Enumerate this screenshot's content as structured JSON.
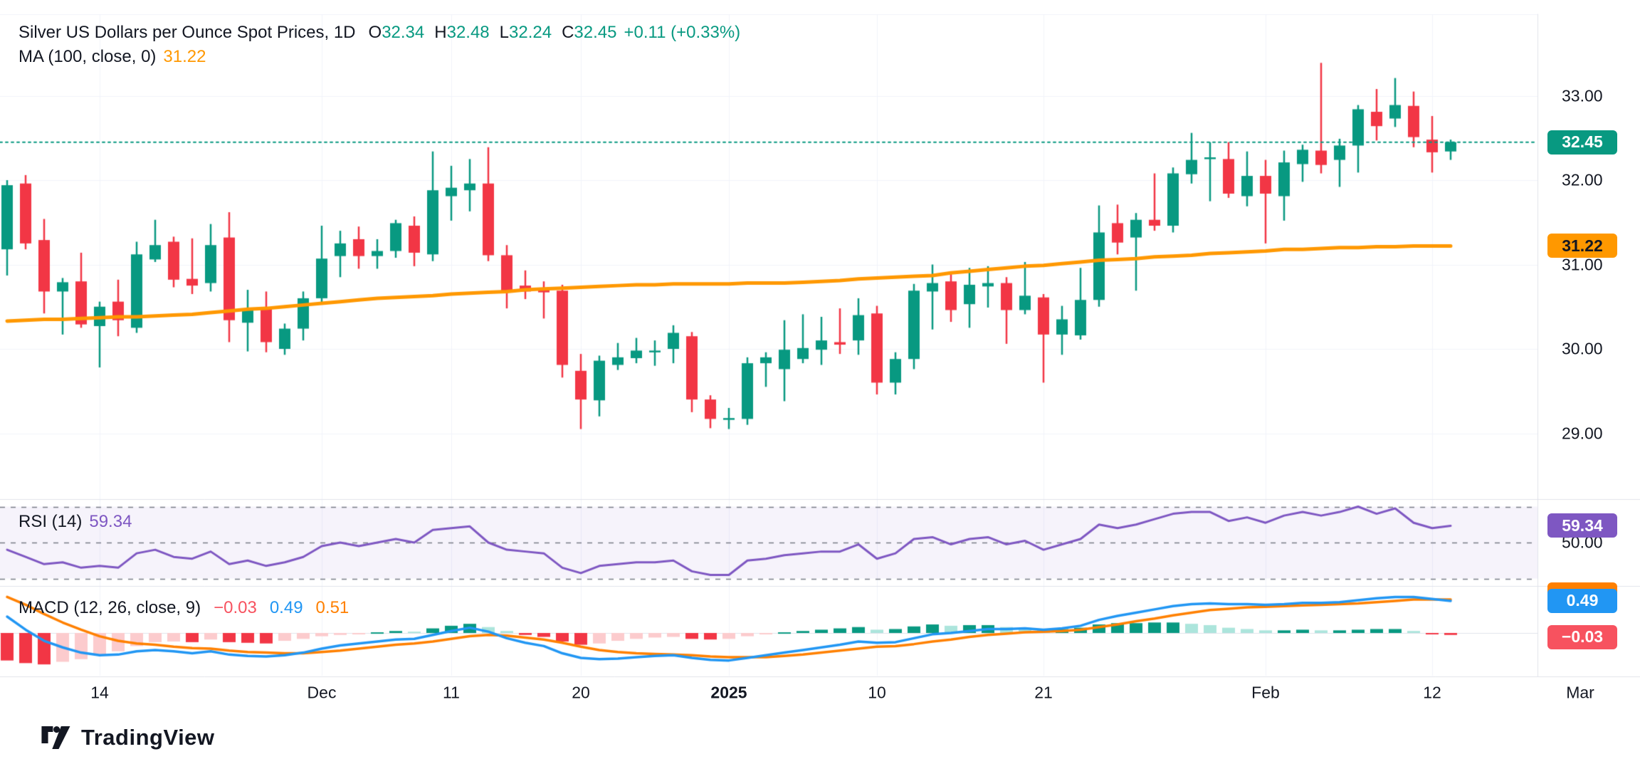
{
  "header": {
    "title": "Silver US Dollars per Ounce Spot Prices, 1D",
    "ohlc": [
      {
        "label": "O",
        "value": "32.34"
      },
      {
        "label": "H",
        "value": "32.48"
      },
      {
        "label": "L",
        "value": "32.24"
      },
      {
        "label": "C",
        "value": "32.45"
      }
    ],
    "change": "+0.11 (+0.33%)",
    "ma_label": "MA (100, close, 0)",
    "ma_value": "31.22"
  },
  "rsi_pane": {
    "label": "RSI (14)",
    "value": "59.34",
    "axis_label": "50.00",
    "badge": "59.34"
  },
  "macd_pane": {
    "label": "MACD (12, 26, close, 9)",
    "hist_value": "−0.03",
    "macd_value": "0.49",
    "signal_value": "0.51",
    "badge_macd": "0.49",
    "badge_hist": "−0.03"
  },
  "price_axis": {
    "labels": [
      {
        "text": "33.00",
        "price": 33.0
      },
      {
        "text": "32.00",
        "price": 32.0
      },
      {
        "text": "31.00",
        "price": 31.0
      },
      {
        "text": "30.00",
        "price": 30.0
      },
      {
        "text": "29.00",
        "price": 29.0
      }
    ],
    "badges": [
      {
        "text": "32.45",
        "price": 32.45,
        "type": "last"
      },
      {
        "text": "31.22",
        "price": 31.22,
        "type": "ma"
      }
    ]
  },
  "time_axis": {
    "ticks": [
      {
        "label": "14",
        "index": 5
      },
      {
        "label": "Dec",
        "index": 17
      },
      {
        "label": "11",
        "index": 24
      },
      {
        "label": "20",
        "index": 31
      },
      {
        "label": "2025",
        "index": 39,
        "bold": true
      },
      {
        "label": "10",
        "index": 47
      },
      {
        "label": "21",
        "index": 56
      },
      {
        "label": "Feb",
        "index": 68
      },
      {
        "label": "12",
        "index": 77
      },
      {
        "label": "Mar",
        "index": 85
      }
    ]
  },
  "logo": {
    "text": "TradingView"
  },
  "colors": {
    "up": "#089981",
    "down": "#f23645",
    "hist_up_strong": "#089981",
    "hist_up_weak": "#ace5dc",
    "hist_down_strong": "#f23645",
    "hist_down_weak": "#fccbcd",
    "ma": "#ff9800",
    "macd_line": "#2196f3",
    "signal_line": "#ff8000",
    "rsi_line": "#7e57c2",
    "last_price": "#089981",
    "text": "#131722",
    "grid": "#f0f3fa",
    "separator": "#e0e3eb",
    "dashed_level": "#787b86",
    "rsi_band_fill": "rgba(126,87,194,0.07)"
  },
  "chart_data": {
    "type": "candlestick",
    "title": "Silver US Dollars per Ounce Spot Prices, 1D",
    "timeframe": "1D",
    "last_ohlc": {
      "open": 32.34,
      "high": 32.48,
      "low": 32.24,
      "close": 32.45,
      "change": 0.11,
      "change_pct": 0.33
    },
    "price_ylim": [
      28.2,
      34.0
    ],
    "rsi_levels": [
      70,
      50,
      30
    ],
    "rsi_last": 59.34,
    "ma100_last": 31.22,
    "macd_last": {
      "hist": -0.03,
      "macd": 0.49,
      "signal": 0.51
    },
    "candles": [
      [
        31.18,
        32.0,
        30.87,
        31.94
      ],
      [
        31.96,
        32.06,
        31.18,
        31.25
      ],
      [
        31.29,
        31.54,
        30.42,
        30.68
      ],
      [
        30.68,
        30.84,
        30.17,
        30.79
      ],
      [
        30.8,
        31.14,
        30.25,
        30.29
      ],
      [
        30.27,
        30.56,
        29.78,
        30.5
      ],
      [
        30.56,
        30.82,
        30.15,
        30.34
      ],
      [
        30.25,
        31.27,
        30.19,
        31.12
      ],
      [
        31.06,
        31.53,
        31.03,
        31.23
      ],
      [
        31.27,
        31.33,
        30.73,
        30.82
      ],
      [
        30.83,
        31.31,
        30.65,
        30.75
      ],
      [
        30.78,
        31.48,
        30.68,
        31.23
      ],
      [
        31.32,
        31.62,
        30.08,
        30.34
      ],
      [
        30.31,
        30.7,
        29.97,
        30.48
      ],
      [
        30.49,
        30.68,
        29.96,
        30.08
      ],
      [
        30.0,
        30.3,
        29.93,
        30.24
      ],
      [
        30.24,
        30.68,
        30.1,
        30.6
      ],
      [
        30.6,
        31.46,
        30.55,
        31.07
      ],
      [
        31.1,
        31.4,
        30.85,
        31.25
      ],
      [
        31.3,
        31.45,
        30.95,
        31.1
      ],
      [
        31.1,
        31.3,
        30.95,
        31.16
      ],
      [
        31.16,
        31.53,
        31.08,
        31.49
      ],
      [
        31.46,
        31.57,
        30.98,
        31.14
      ],
      [
        31.12,
        32.34,
        31.04,
        31.88
      ],
      [
        31.81,
        32.17,
        31.52,
        31.91
      ],
      [
        31.88,
        32.25,
        31.63,
        31.96
      ],
      [
        31.96,
        32.39,
        31.04,
        31.11
      ],
      [
        31.11,
        31.23,
        30.48,
        30.68
      ],
      [
        30.75,
        30.93,
        30.59,
        30.68
      ],
      [
        30.7,
        30.8,
        30.36,
        30.67
      ],
      [
        30.69,
        30.76,
        29.66,
        29.81
      ],
      [
        29.74,
        29.94,
        29.05,
        29.4
      ],
      [
        29.39,
        29.92,
        29.2,
        29.86
      ],
      [
        29.81,
        30.07,
        29.75,
        29.9
      ],
      [
        29.89,
        30.13,
        29.83,
        29.98
      ],
      [
        29.97,
        30.1,
        29.8,
        29.98
      ],
      [
        30.0,
        30.28,
        29.83,
        30.19
      ],
      [
        30.15,
        30.2,
        29.25,
        29.4
      ],
      [
        29.4,
        29.45,
        29.06,
        29.17
      ],
      [
        29.18,
        29.3,
        29.05,
        29.18
      ],
      [
        29.17,
        29.9,
        29.1,
        29.83
      ],
      [
        29.83,
        29.96,
        29.55,
        29.9
      ],
      [
        29.76,
        30.34,
        29.38,
        29.99
      ],
      [
        29.88,
        30.41,
        29.83,
        30.01
      ],
      [
        29.99,
        30.38,
        29.81,
        30.1
      ],
      [
        30.08,
        30.48,
        29.94,
        30.05
      ],
      [
        30.1,
        30.6,
        29.93,
        30.4
      ],
      [
        30.42,
        30.51,
        29.46,
        29.6
      ],
      [
        29.6,
        29.96,
        29.46,
        29.88
      ],
      [
        29.88,
        30.77,
        29.76,
        30.69
      ],
      [
        30.68,
        31.0,
        30.23,
        30.78
      ],
      [
        30.8,
        30.9,
        30.32,
        30.46
      ],
      [
        30.53,
        30.96,
        30.25,
        30.76
      ],
      [
        30.74,
        30.98,
        30.49,
        30.78
      ],
      [
        30.78,
        30.85,
        30.06,
        30.46
      ],
      [
        30.46,
        31.03,
        30.41,
        30.63
      ],
      [
        30.61,
        30.65,
        29.6,
        30.17
      ],
      [
        30.17,
        30.51,
        29.93,
        30.35
      ],
      [
        30.16,
        30.96,
        30.11,
        30.58
      ],
      [
        30.58,
        31.7,
        30.5,
        31.38
      ],
      [
        31.49,
        31.71,
        31.12,
        31.26
      ],
      [
        31.32,
        31.61,
        30.69,
        31.53
      ],
      [
        31.53,
        32.08,
        31.4,
        31.46
      ],
      [
        31.46,
        32.15,
        31.38,
        32.08
      ],
      [
        32.07,
        32.56,
        31.96,
        32.24
      ],
      [
        32.25,
        32.45,
        31.75,
        32.27
      ],
      [
        32.25,
        32.45,
        31.79,
        31.84
      ],
      [
        31.81,
        32.34,
        31.69,
        32.05
      ],
      [
        32.05,
        32.24,
        31.25,
        31.84
      ],
      [
        31.81,
        32.35,
        31.52,
        32.21
      ],
      [
        32.19,
        32.42,
        31.98,
        32.36
      ],
      [
        32.35,
        33.39,
        32.08,
        32.18
      ],
      [
        32.24,
        32.49,
        31.92,
        32.41
      ],
      [
        32.41,
        32.89,
        32.09,
        32.84
      ],
      [
        32.81,
        33.08,
        32.47,
        32.64
      ],
      [
        32.73,
        33.21,
        32.63,
        32.89
      ],
      [
        32.88,
        33.05,
        32.39,
        32.51
      ],
      [
        32.48,
        32.76,
        32.09,
        32.33
      ],
      [
        32.34,
        32.48,
        32.24,
        32.45
      ]
    ],
    "ma100": [
      30.33,
      30.34,
      30.35,
      30.35,
      30.36,
      30.37,
      30.38,
      30.38,
      30.39,
      30.4,
      30.41,
      30.43,
      30.45,
      30.47,
      30.48,
      30.5,
      30.52,
      30.54,
      30.56,
      30.58,
      30.6,
      30.61,
      30.62,
      30.63,
      30.65,
      30.66,
      30.67,
      30.68,
      30.7,
      30.71,
      30.72,
      30.73,
      30.74,
      30.75,
      30.76,
      30.76,
      30.77,
      30.77,
      30.77,
      30.77,
      30.78,
      30.78,
      30.78,
      30.79,
      30.8,
      30.81,
      30.83,
      30.84,
      30.85,
      30.86,
      30.87,
      30.9,
      30.92,
      30.94,
      30.96,
      30.98,
      30.99,
      31.01,
      31.03,
      31.05,
      31.06,
      31.07,
      31.09,
      31.1,
      31.11,
      31.13,
      31.14,
      31.15,
      31.16,
      31.18,
      31.18,
      31.19,
      31.2,
      31.2,
      31.21,
      31.21,
      31.22,
      31.22,
      31.22
    ],
    "rsi14": [
      46,
      42,
      38,
      39,
      36,
      37,
      36,
      44,
      46,
      42,
      41,
      45,
      38,
      40,
      37,
      39,
      42,
      48,
      50,
      48,
      50,
      52,
      50,
      57,
      58,
      59,
      50,
      46,
      45,
      44,
      36,
      33,
      37,
      38,
      39,
      39,
      40,
      34,
      32,
      32,
      40,
      41,
      43,
      44,
      45,
      45,
      49,
      41,
      44,
      52,
      53,
      49,
      52,
      53,
      49,
      51,
      46,
      49,
      52,
      60,
      58,
      60,
      63,
      66,
      67,
      67,
      62,
      64,
      61,
      65,
      67,
      65,
      67,
      70,
      66,
      69,
      61,
      58,
      59.34
    ],
    "macd": [
      0.25,
      0.05,
      -0.12,
      -0.22,
      -0.3,
      -0.34,
      -0.33,
      -0.28,
      -0.26,
      -0.28,
      -0.31,
      -0.28,
      -0.33,
      -0.35,
      -0.36,
      -0.34,
      -0.3,
      -0.24,
      -0.19,
      -0.16,
      -0.13,
      -0.1,
      -0.09,
      -0.03,
      0.03,
      0.08,
      0.02,
      -0.08,
      -0.15,
      -0.2,
      -0.31,
      -0.38,
      -0.4,
      -0.39,
      -0.37,
      -0.35,
      -0.34,
      -0.38,
      -0.41,
      -0.42,
      -0.38,
      -0.34,
      -0.3,
      -0.26,
      -0.22,
      -0.18,
      -0.13,
      -0.15,
      -0.14,
      -0.08,
      -0.02,
      0.0,
      0.03,
      0.06,
      0.06,
      0.07,
      0.05,
      0.07,
      0.11,
      0.2,
      0.26,
      0.31,
      0.36,
      0.41,
      0.44,
      0.45,
      0.44,
      0.44,
      0.43,
      0.44,
      0.46,
      0.46,
      0.47,
      0.5,
      0.53,
      0.55,
      0.55,
      0.52,
      0.49
    ],
    "macd_signal": [
      0.55,
      0.43,
      0.29,
      0.16,
      0.05,
      -0.05,
      -0.12,
      -0.16,
      -0.18,
      -0.21,
      -0.23,
      -0.24,
      -0.27,
      -0.29,
      -0.3,
      -0.31,
      -0.31,
      -0.29,
      -0.27,
      -0.24,
      -0.21,
      -0.18,
      -0.16,
      -0.13,
      -0.09,
      -0.05,
      -0.03,
      -0.04,
      -0.07,
      -0.1,
      -0.15,
      -0.21,
      -0.26,
      -0.29,
      -0.31,
      -0.32,
      -0.33,
      -0.34,
      -0.36,
      -0.37,
      -0.37,
      -0.37,
      -0.35,
      -0.33,
      -0.3,
      -0.27,
      -0.24,
      -0.21,
      -0.2,
      -0.17,
      -0.13,
      -0.1,
      -0.06,
      -0.03,
      -0.01,
      0.01,
      0.02,
      0.03,
      0.05,
      0.09,
      0.13,
      0.18,
      0.22,
      0.27,
      0.31,
      0.35,
      0.37,
      0.39,
      0.4,
      0.41,
      0.42,
      0.43,
      0.44,
      0.45,
      0.47,
      0.49,
      0.51,
      0.51,
      0.51
    ],
    "macd_hist": [
      -0.42,
      -0.46,
      -0.48,
      -0.44,
      -0.4,
      -0.34,
      -0.28,
      -0.2,
      -0.14,
      -0.13,
      -0.14,
      -0.1,
      -0.14,
      -0.15,
      -0.16,
      -0.12,
      -0.09,
      -0.05,
      -0.03,
      -0.02,
      0.01,
      0.03,
      0.02,
      0.07,
      0.11,
      0.14,
      0.09,
      0.03,
      -0.03,
      -0.06,
      -0.13,
      -0.18,
      -0.16,
      -0.12,
      -0.09,
      -0.07,
      -0.06,
      -0.09,
      -0.1,
      -0.09,
      -0.05,
      -0.02,
      0.01,
      0.03,
      0.05,
      0.07,
      0.09,
      0.05,
      0.06,
      0.1,
      0.13,
      0.11,
      0.12,
      0.12,
      0.09,
      0.08,
      0.05,
      0.06,
      0.08,
      0.13,
      0.15,
      0.15,
      0.16,
      0.16,
      0.14,
      0.12,
      0.08,
      0.06,
      0.04,
      0.04,
      0.05,
      0.04,
      0.04,
      0.05,
      0.06,
      0.06,
      0.03,
      -0.02,
      -0.03
    ]
  }
}
